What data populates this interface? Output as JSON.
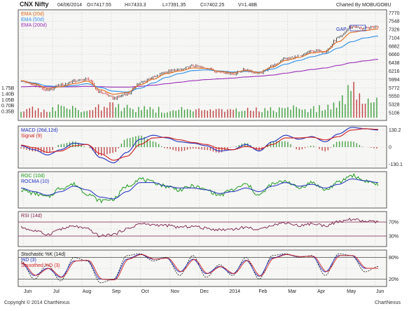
{
  "header": {
    "symbol": "CNX Nifty",
    "date": "04/06/2014",
    "open": "O=7417.55",
    "high": "H=7433.3",
    "low": "L=7391.35",
    "close": "C=7402.25",
    "volume": "V=1.48B",
    "charted_by": "Charted By MOBUGOBU"
  },
  "footer": {
    "copyright": "Copyright © 2014 ChartNexus",
    "brand": "ChartNexus"
  },
  "colors": {
    "ema20": "#e06a1a",
    "ema50": "#2f8fe6",
    "ema200": "#9b2fb8",
    "up_bar": "#1f8f1f",
    "down_bar": "#b32020",
    "macd": "#1f2fbf",
    "signal": "#d11f1f",
    "roc": "#1e9b1e",
    "rocma": "#1f2fbf",
    "rsi": "#7a1e4a",
    "panel_bg": "#f6f6f4",
    "grid": "#cfcfcf"
  },
  "chart_data": [
    {
      "type": "line",
      "panel": "price",
      "legend": [
        "EMA (20d)",
        "EMA (50d)",
        "EMA (200d)"
      ],
      "y_ticks": [
        7770,
        7548,
        7326,
        7104,
        6882,
        6660,
        6438,
        6216,
        5994,
        5772,
        5550,
        5328,
        5106
      ],
      "volume_ticks": [
        "1.75B",
        "1.40B",
        "1.05B",
        "0.70B",
        "0.35B"
      ],
      "annotation": "GAP",
      "x_labels": [
        "Jun",
        "Jul",
        "Aug",
        "Sep",
        "Oct",
        "Nov",
        "Dec",
        "2014",
        "Feb",
        "Mar",
        "Apr",
        "May",
        "Jun"
      ],
      "close_anchors": [
        5950,
        5850,
        5700,
        5850,
        5950,
        6000,
        5650,
        5500,
        5600,
        5900,
        6050,
        6200,
        6250,
        6350,
        6300,
        6200,
        6150,
        6250,
        6150,
        6350,
        6550,
        6600,
        6750,
        6750,
        7100,
        7400,
        7350,
        7420
      ],
      "ema20_anchors": [
        5960,
        5880,
        5760,
        5800,
        5880,
        5950,
        5720,
        5600,
        5640,
        5850,
        6000,
        6150,
        6220,
        6300,
        6290,
        6210,
        6170,
        6230,
        6180,
        6320,
        6500,
        6580,
        6700,
        6740,
        7000,
        7250,
        7300,
        7340
      ],
      "ema50_anchors": [
        5950,
        5900,
        5820,
        5800,
        5830,
        5880,
        5780,
        5680,
        5660,
        5760,
        5900,
        6050,
        6150,
        6230,
        6250,
        6220,
        6190,
        6210,
        6190,
        6270,
        6400,
        6500,
        6600,
        6680,
        6830,
        7000,
        7100,
        7150
      ],
      "ema200_anchors": [
        5800,
        5805,
        5800,
        5795,
        5800,
        5810,
        5800,
        5790,
        5790,
        5810,
        5840,
        5880,
        5920,
        5960,
        5990,
        6010,
        6030,
        6060,
        6080,
        6110,
        6160,
        6210,
        6260,
        6300,
        6370,
        6440,
        6490,
        6530
      ],
      "volume_anchors": [
        0.45,
        0.55,
        0.5,
        0.6,
        0.55,
        0.5,
        0.65,
        0.75,
        0.6,
        0.55,
        0.5,
        0.45,
        0.5,
        0.45,
        0.4,
        0.45,
        0.4,
        0.5,
        0.45,
        0.5,
        0.55,
        0.6,
        0.55,
        0.6,
        0.9,
        1.7,
        1.2,
        1.5
      ]
    },
    {
      "type": "line",
      "panel": "macd",
      "legend": [
        "MACD (26d,12d)",
        "Signal (9)"
      ],
      "y_ticks": [
        "130.2",
        "0",
        "-130.1"
      ],
      "ylim": [
        -160,
        160
      ],
      "macd_anchors": [
        10,
        -20,
        -60,
        -20,
        30,
        20,
        -80,
        -120,
        -40,
        60,
        90,
        70,
        40,
        30,
        10,
        -30,
        -20,
        20,
        -30,
        40,
        90,
        60,
        80,
        40,
        100,
        150,
        140,
        130
      ],
      "signal_anchors": [
        15,
        -5,
        -40,
        -30,
        10,
        20,
        -50,
        -100,
        -70,
        20,
        70,
        75,
        55,
        35,
        20,
        -10,
        -20,
        5,
        -15,
        20,
        70,
        70,
        75,
        55,
        80,
        130,
        140,
        135
      ]
    },
    {
      "type": "line",
      "panel": "roc",
      "legend": [
        "ROC (10d)",
        "ROCMA (10)"
      ],
      "roc_anchors": [
        0,
        -2,
        -4,
        1,
        3,
        -2,
        -6,
        -5,
        2,
        6,
        4,
        2,
        0,
        2,
        0,
        -3,
        0,
        3,
        -3,
        3,
        5,
        1,
        4,
        0,
        4,
        8,
        5,
        3
      ],
      "rocma_anchors": [
        1,
        -1,
        -3,
        -1,
        2,
        0,
        -4,
        -5,
        -1,
        4,
        4,
        2,
        1,
        1,
        0,
        -2,
        -1,
        1,
        -1,
        2,
        4,
        2,
        3,
        1,
        3,
        6,
        5,
        4
      ]
    },
    {
      "type": "line",
      "panel": "rsi",
      "legend": [
        "RSI (14d)"
      ],
      "y_ticks": [
        "70%",
        "30%"
      ],
      "ylim": [
        0,
        100
      ],
      "rsi_anchors": [
        55,
        45,
        35,
        50,
        58,
        50,
        30,
        35,
        50,
        65,
        62,
        60,
        55,
        58,
        52,
        48,
        50,
        55,
        48,
        62,
        68,
        60,
        65,
        60,
        70,
        78,
        72,
        70
      ]
    },
    {
      "type": "line",
      "panel": "stochastic",
      "legend": [
        "Stochastic %K (14d)",
        "%D (3)",
        "Smoothed %D (3)"
      ],
      "y_ticks": [
        "80%",
        "20%"
      ],
      "ylim": [
        0,
        100
      ],
      "k_anchors": [
        70,
        20,
        60,
        15,
        80,
        70,
        10,
        20,
        85,
        90,
        70,
        80,
        30,
        85,
        25,
        60,
        30,
        80,
        20,
        85,
        90,
        80,
        85,
        30,
        90,
        85,
        40,
        55
      ],
      "d_anchors": [
        65,
        30,
        50,
        25,
        70,
        72,
        20,
        18,
        75,
        88,
        75,
        78,
        40,
        75,
        35,
        55,
        35,
        72,
        28,
        78,
        88,
        82,
        83,
        40,
        85,
        85,
        50,
        50
      ]
    }
  ]
}
